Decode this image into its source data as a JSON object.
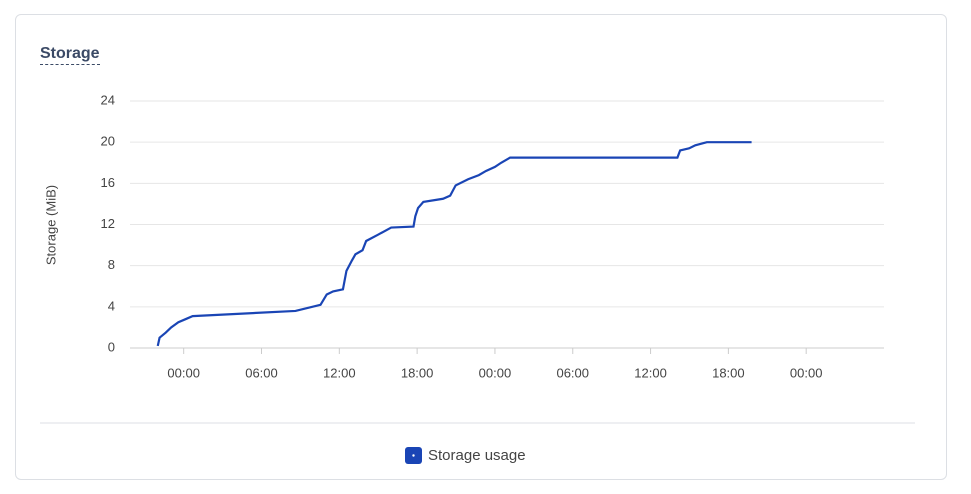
{
  "chart_data": {
    "type": "line",
    "title": "Storage",
    "y_label": "Storage  (MiB)",
    "x": [
      -2.0,
      -1.86,
      -1.38,
      -0.97,
      -0.41,
      0.14,
      0.69,
      8.62,
      10.55,
      11.03,
      11.52,
      12.28,
      12.55,
      12.97,
      13.24,
      13.79,
      14.07,
      14.97,
      16.0,
      17.72,
      17.86,
      18.07,
      18.48,
      20.0,
      20.55,
      20.97,
      21.93,
      22.76,
      23.31,
      24.0,
      24.48,
      25.17,
      38.07,
      38.28,
      38.97,
      39.45,
      40.34,
      43.79
    ],
    "series": [
      {
        "name": "Storage usage",
        "color": "#1a45b5",
        "values": [
          0.2,
          1.0,
          1.5,
          2.0,
          2.5,
          2.8,
          3.1,
          3.6,
          4.2,
          5.2,
          5.5,
          5.7,
          7.5,
          8.5,
          9.1,
          9.5,
          10.4,
          11.0,
          11.7,
          11.8,
          12.8,
          13.6,
          14.2,
          14.5,
          14.8,
          15.8,
          16.4,
          16.8,
          17.2,
          17.6,
          18.0,
          18.5,
          18.5,
          19.2,
          19.4,
          19.7,
          20.0,
          20.0
        ]
      }
    ],
    "xlim": [
      -4.14,
      54
    ],
    "ylim": [
      0,
      24
    ],
    "xticks": [
      {
        "value": 0,
        "label": "00:00"
      },
      {
        "value": 6,
        "label": "06:00"
      },
      {
        "value": 12,
        "label": "12:00"
      },
      {
        "value": 18,
        "label": "18:00"
      },
      {
        "value": 24,
        "label": "00:00"
      },
      {
        "value": 30,
        "label": "06:00"
      },
      {
        "value": 36,
        "label": "12:00"
      },
      {
        "value": 42,
        "label": "18:00"
      },
      {
        "value": 48,
        "label": "00:00"
      }
    ],
    "yticks": [
      0,
      4,
      8,
      12,
      16,
      20,
      24
    ],
    "grid": true,
    "legend": "bottom"
  }
}
